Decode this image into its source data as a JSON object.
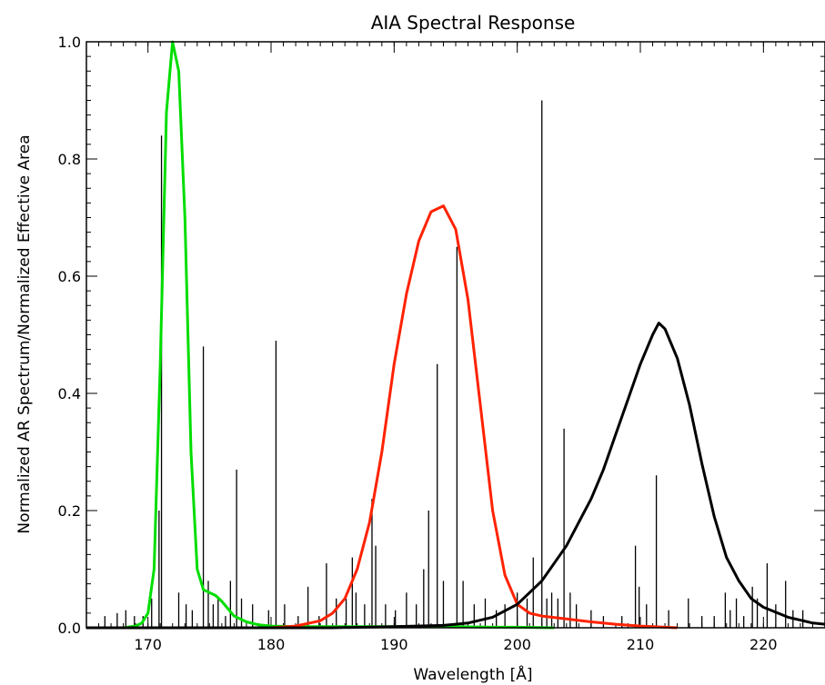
{
  "chart_data": {
    "type": "line",
    "title": "AIA Spectral Response",
    "xlabel": "Wavelength [Å]",
    "ylabel": "Normalized AR Spectrum/Normalized Effective Area",
    "xlim": [
      165,
      225
    ],
    "ylim": [
      0.0,
      1.0
    ],
    "x_ticks": [
      170,
      180,
      190,
      200,
      210,
      220
    ],
    "x_tick_labels": [
      "170",
      "180",
      "190",
      "200",
      "210",
      "220"
    ],
    "y_ticks": [
      0.0,
      0.2,
      0.4,
      0.6,
      0.8,
      1.0
    ],
    "y_tick_labels": [
      "0.0",
      "0.2",
      "0.4",
      "0.6",
      "0.8",
      "1.0"
    ],
    "grid": false,
    "series": [
      {
        "color": "#00dd00",
        "x": [
          165,
          168,
          169,
          169.5,
          170,
          170.5,
          171,
          171.5,
          172,
          172.5,
          173,
          173.5,
          174,
          174.5,
          175,
          175.5,
          176,
          177,
          178,
          179,
          180,
          182,
          186,
          190,
          195,
          198,
          200,
          203
        ],
        "y": [
          0.0,
          0.0,
          0.003,
          0.008,
          0.025,
          0.1,
          0.45,
          0.88,
          1.0,
          0.95,
          0.7,
          0.3,
          0.1,
          0.065,
          0.06,
          0.055,
          0.045,
          0.02,
          0.01,
          0.005,
          0.003,
          0.002,
          0.002,
          0.002,
          0.002,
          0.001,
          0.001,
          0.0
        ]
      },
      {
        "color": "#ff2200",
        "x": [
          165,
          180,
          182,
          184,
          185,
          186,
          187,
          188,
          189,
          190,
          191,
          192,
          193,
          194,
          195,
          196,
          197,
          198,
          199,
          200,
          201,
          202,
          204,
          206,
          208,
          210,
          213
        ],
        "y": [
          0.0,
          0.0,
          0.003,
          0.012,
          0.025,
          0.05,
          0.1,
          0.18,
          0.3,
          0.45,
          0.57,
          0.66,
          0.71,
          0.72,
          0.68,
          0.56,
          0.38,
          0.2,
          0.09,
          0.04,
          0.025,
          0.02,
          0.015,
          0.01,
          0.006,
          0.003,
          0.0
        ]
      },
      {
        "color": "#000000",
        "x": [
          165,
          185,
          190,
          194,
          196,
          198,
          200,
          202,
          204,
          205,
          206,
          207,
          208,
          209,
          210,
          211,
          211.5,
          212,
          213,
          214,
          215,
          216,
          217,
          218,
          219,
          220,
          222,
          224,
          225
        ],
        "y": [
          0.0,
          0.0,
          0.002,
          0.004,
          0.008,
          0.018,
          0.04,
          0.08,
          0.14,
          0.18,
          0.22,
          0.27,
          0.33,
          0.39,
          0.45,
          0.5,
          0.52,
          0.51,
          0.46,
          0.38,
          0.28,
          0.19,
          0.12,
          0.08,
          0.05,
          0.035,
          0.018,
          0.008,
          0.006
        ]
      }
    ],
    "spectrum_lines": {
      "color": "#000000",
      "x": [
        166.5,
        167.5,
        168.2,
        168.9,
        169.6,
        170.3,
        170.9,
        171.1,
        172.5,
        173.1,
        173.6,
        174.5,
        174.9,
        175.3,
        175.7,
        176.3,
        176.7,
        177.2,
        177.6,
        178.5,
        179.8,
        180.4,
        181.1,
        182.2,
        183.0,
        183.9,
        184.5,
        185.3,
        186.1,
        186.6,
        186.9,
        187.6,
        188.2,
        188.5,
        189.3,
        190.1,
        191.0,
        191.8,
        192.4,
        192.8,
        193.5,
        194.0,
        195.1,
        195.6,
        196.5,
        197.4,
        198.3,
        199.0,
        200.0,
        200.8,
        201.3,
        202.0,
        202.4,
        202.8,
        203.3,
        203.8,
        204.3,
        204.8,
        206.0,
        207.0,
        208.5,
        209.6,
        209.9,
        210.5,
        211.3,
        212.3,
        213.9,
        215.0,
        216.0,
        216.9,
        217.3,
        217.8,
        218.4,
        219.1,
        219.5,
        220.3,
        221.0,
        221.8,
        222.4,
        223.2
      ],
      "y": [
        0.02,
        0.025,
        0.03,
        0.02,
        0.02,
        0.05,
        0.2,
        0.84,
        0.06,
        0.04,
        0.03,
        0.48,
        0.08,
        0.04,
        0.05,
        0.02,
        0.08,
        0.27,
        0.05,
        0.04,
        0.03,
        0.49,
        0.04,
        0.02,
        0.07,
        0.02,
        0.11,
        0.05,
        0.05,
        0.12,
        0.06,
        0.04,
        0.22,
        0.14,
        0.04,
        0.03,
        0.06,
        0.04,
        0.1,
        0.2,
        0.45,
        0.08,
        0.65,
        0.08,
        0.04,
        0.05,
        0.03,
        0.04,
        0.06,
        0.05,
        0.12,
        0.9,
        0.05,
        0.06,
        0.05,
        0.34,
        0.06,
        0.04,
        0.03,
        0.02,
        0.02,
        0.14,
        0.07,
        0.04,
        0.26,
        0.03,
        0.05,
        0.02,
        0.02,
        0.06,
        0.03,
        0.05,
        0.02,
        0.07,
        0.05,
        0.11,
        0.04,
        0.08,
        0.03,
        0.03
      ]
    }
  }
}
